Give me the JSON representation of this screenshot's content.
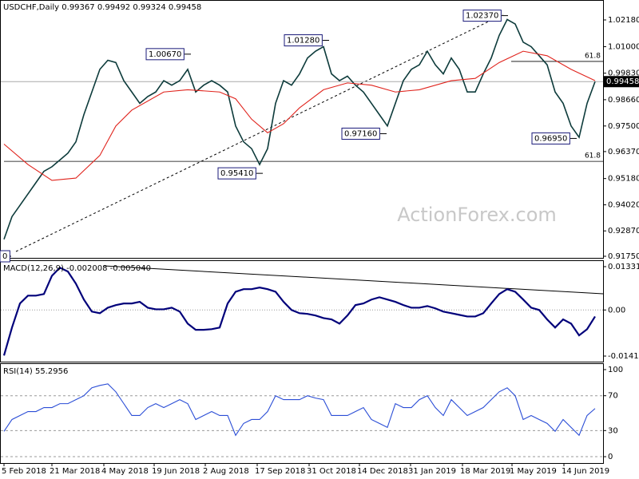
{
  "chart_data": [
    {
      "type": "line",
      "title": "USDCHF,Daily  0.99367 0.99492 0.99324 0.99458",
      "watermark": "ActionForex.com",
      "xlim": [
        0,
        75
      ],
      "ylim": [
        0.9168,
        1.0306
      ],
      "yticks": [
        {
          "value": 1.0218,
          "label": "1.02180"
        },
        {
          "value": 1.01,
          "label": "1.01000"
        },
        {
          "value": 0.9983,
          "label": "0.99830"
        },
        {
          "value": 0.9866,
          "label": "0.98660"
        },
        {
          "value": 0.975,
          "label": "0.97500"
        },
        {
          "value": 0.9637,
          "label": "0.96370"
        },
        {
          "value": 0.9518,
          "label": "0.95180"
        },
        {
          "value": 0.9402,
          "label": "0.94020"
        },
        {
          "value": 0.9287,
          "label": "0.92870"
        },
        {
          "value": 0.9175,
          "label": "0.91750"
        }
      ],
      "grid": false,
      "series": [
        {
          "color": "#0d3b3b",
          "values": [
            0.925,
            0.935,
            0.94,
            0.945,
            0.95,
            0.955,
            0.957,
            0.96,
            0.963,
            0.968,
            0.98,
            0.99,
            1.0,
            1.004,
            1.003,
            0.995,
            0.99,
            0.985,
            0.988,
            0.99,
            0.995,
            0.993,
            0.995,
            1.0,
            0.99,
            0.993,
            0.995,
            0.993,
            0.99,
            0.975,
            0.968,
            0.965,
            0.958,
            0.965,
            0.985,
            0.995,
            0.993,
            0.998,
            1.005,
            1.008,
            1.01,
            0.998,
            0.995,
            0.997,
            0.993,
            0.99,
            0.985,
            0.98,
            0.975,
            0.985,
            0.995,
            1.0,
            1.002,
            1.008,
            1.002,
            0.998,
            1.005,
            1.0,
            0.99,
            0.99,
            0.998,
            1.005,
            1.015,
            1.022,
            1.02,
            1.012,
            1.01,
            1.006,
            1.002,
            0.99,
            0.985,
            0.975,
            0.97,
            0.985,
            0.99458
          ]
        },
        {
          "color": "#e0231c",
          "x": [
            0,
            3,
            6,
            9,
            12,
            14,
            16,
            20,
            23,
            27,
            29,
            31,
            33,
            35,
            37,
            40,
            43,
            46,
            49,
            52,
            56,
            59,
            62,
            65,
            68,
            71,
            74
          ],
          "values": [
            0.967,
            0.958,
            0.951,
            0.952,
            0.962,
            0.975,
            0.982,
            0.99,
            0.991,
            0.99,
            0.987,
            0.978,
            0.972,
            0.976,
            0.983,
            0.991,
            0.994,
            0.993,
            0.99,
            0.991,
            0.995,
            0.996,
            1.003,
            1.008,
            1.006,
            1.0,
            0.995
          ]
        }
      ],
      "annotations": [
        {
          "value": 1.0067,
          "label": "1.00670",
          "x": 23
        },
        {
          "value": 1.0128,
          "label": "1.01280",
          "x": 40.3
        },
        {
          "value": 1.0237,
          "label": "1.02370",
          "x": 62.7
        },
        {
          "value": 0.9716,
          "label": "0.97160",
          "x": 47.5
        },
        {
          "value": 0.9695,
          "label": "0.96950",
          "x": 71.3
        },
        {
          "value": 0.9541,
          "label": "0.95410",
          "x": 32
        },
        {
          "value": 0.9175,
          "label": "0",
          "x": 0.5
        }
      ],
      "levels": [
        {
          "value": 1.0035,
          "label": "61.8",
          "from": 63.5
        },
        {
          "value": 0.9594,
          "label": "61.8",
          "from": 0
        }
      ],
      "last_price": {
        "value": 0.99458,
        "label": "0.99458"
      }
    },
    {
      "type": "line",
      "title": "MACD(12,26,9) -0.002008 -0.005040",
      "xlim": [
        0,
        75
      ],
      "ylim": [
        -0.01588,
        0.01503
      ],
      "yticks": [
        0.013312,
        {
          "value": 0,
          "label": "0.00"
        },
        -0.014167
      ],
      "grid": "dotted-zero",
      "series": [
        {
          "color": "#00007a",
          "values": [
            -0.014,
            -0.0054,
            0.002,
            0.0044,
            0.0044,
            0.0049,
            0.0105,
            0.013,
            0.0118,
            0.0081,
            0.0032,
            -0.0005,
            -0.001,
            0.0007,
            0.0015,
            0.002,
            0.002,
            0.0025,
            0.0007,
            0.0002,
            0.0002,
            0.0007,
            -0.0005,
            -0.0042,
            -0.0061,
            -0.0061,
            -0.0059,
            -0.0054,
            0.002,
            0.0056,
            0.0064,
            0.0064,
            0.0069,
            0.0064,
            0.0056,
            0.0025,
            0,
            -0.001,
            -0.0012,
            -0.0017,
            -0.0025,
            -0.0029,
            -0.0042,
            -0.0017,
            0.0015,
            0.002,
            0.0032,
            0.0039,
            0.0032,
            0.0025,
            0.0015,
            0.0007,
            0.0007,
            0.0012,
            0.0005,
            -0.0005,
            -0.001,
            -0.0015,
            -0.002,
            -0.002,
            -0.001,
            0.002,
            0.0049,
            0.0064,
            0.0056,
            0.0032,
            0.0007,
            0,
            -0.0029,
            -0.0054,
            -0.0029,
            -0.0042,
            -0.0078,
            -0.0059,
            -0.002008
          ]
        }
      ]
    },
    {
      "type": "line",
      "title": "RSI(14) 55.2956",
      "xlim": [
        0,
        75
      ],
      "ylim": [
        -7.3,
        106.4
      ],
      "yticks": [
        100,
        70,
        30,
        0
      ],
      "grid": "dashed",
      "xticks": [
        {
          "value": 0,
          "label": "5 Feb 2018"
        },
        {
          "value": 6,
          "label": "21 Mar 2018"
        },
        {
          "value": 12.5,
          "label": "4 May 2018"
        },
        {
          "value": 18.8,
          "label": "19 Jun 2018"
        },
        {
          "value": 25.2,
          "label": "2 Aug 2018"
        },
        {
          "value": 31.7,
          "label": "17 Sep 2018"
        },
        {
          "value": 38.2,
          "label": "31 Oct 2018"
        },
        {
          "value": 44.5,
          "label": "14 Dec 2018"
        },
        {
          "value": 50.9,
          "label": "31 Jan 2019"
        },
        {
          "value": 57.4,
          "label": "18 Mar 2019"
        },
        {
          "value": 63.6,
          "label": "1 May 2019"
        },
        {
          "value": 70.1,
          "label": "14 Jun 2019"
        }
      ],
      "series": [
        {
          "color": "#2a4dd6",
          "values": [
            29.1,
            42.7,
            47.3,
            51.8,
            51.8,
            56.4,
            56.4,
            60.9,
            60.9,
            65.5,
            70,
            79.1,
            81.8,
            83.6,
            74.5,
            60.9,
            47.3,
            47.3,
            56.4,
            60.9,
            56.4,
            60.9,
            65.5,
            60.9,
            42.7,
            47.3,
            51.8,
            47.3,
            47.3,
            24.5,
            38.2,
            42.7,
            42.7,
            51.8,
            70,
            65.5,
            65.5,
            65.5,
            70,
            67.3,
            65.5,
            47.3,
            47.3,
            47.3,
            51.8,
            56.4,
            42.7,
            38.2,
            33.6,
            60.9,
            56.4,
            56.4,
            65.5,
            70,
            56.4,
            47.3,
            65.5,
            56.4,
            47.3,
            51.8,
            56.4,
            65.5,
            74.5,
            79.1,
            70,
            42.7,
            47.3,
            42.7,
            38.2,
            29.1,
            42.7,
            33.6,
            24.5,
            47.3,
            55.2956
          ]
        }
      ]
    }
  ]
}
